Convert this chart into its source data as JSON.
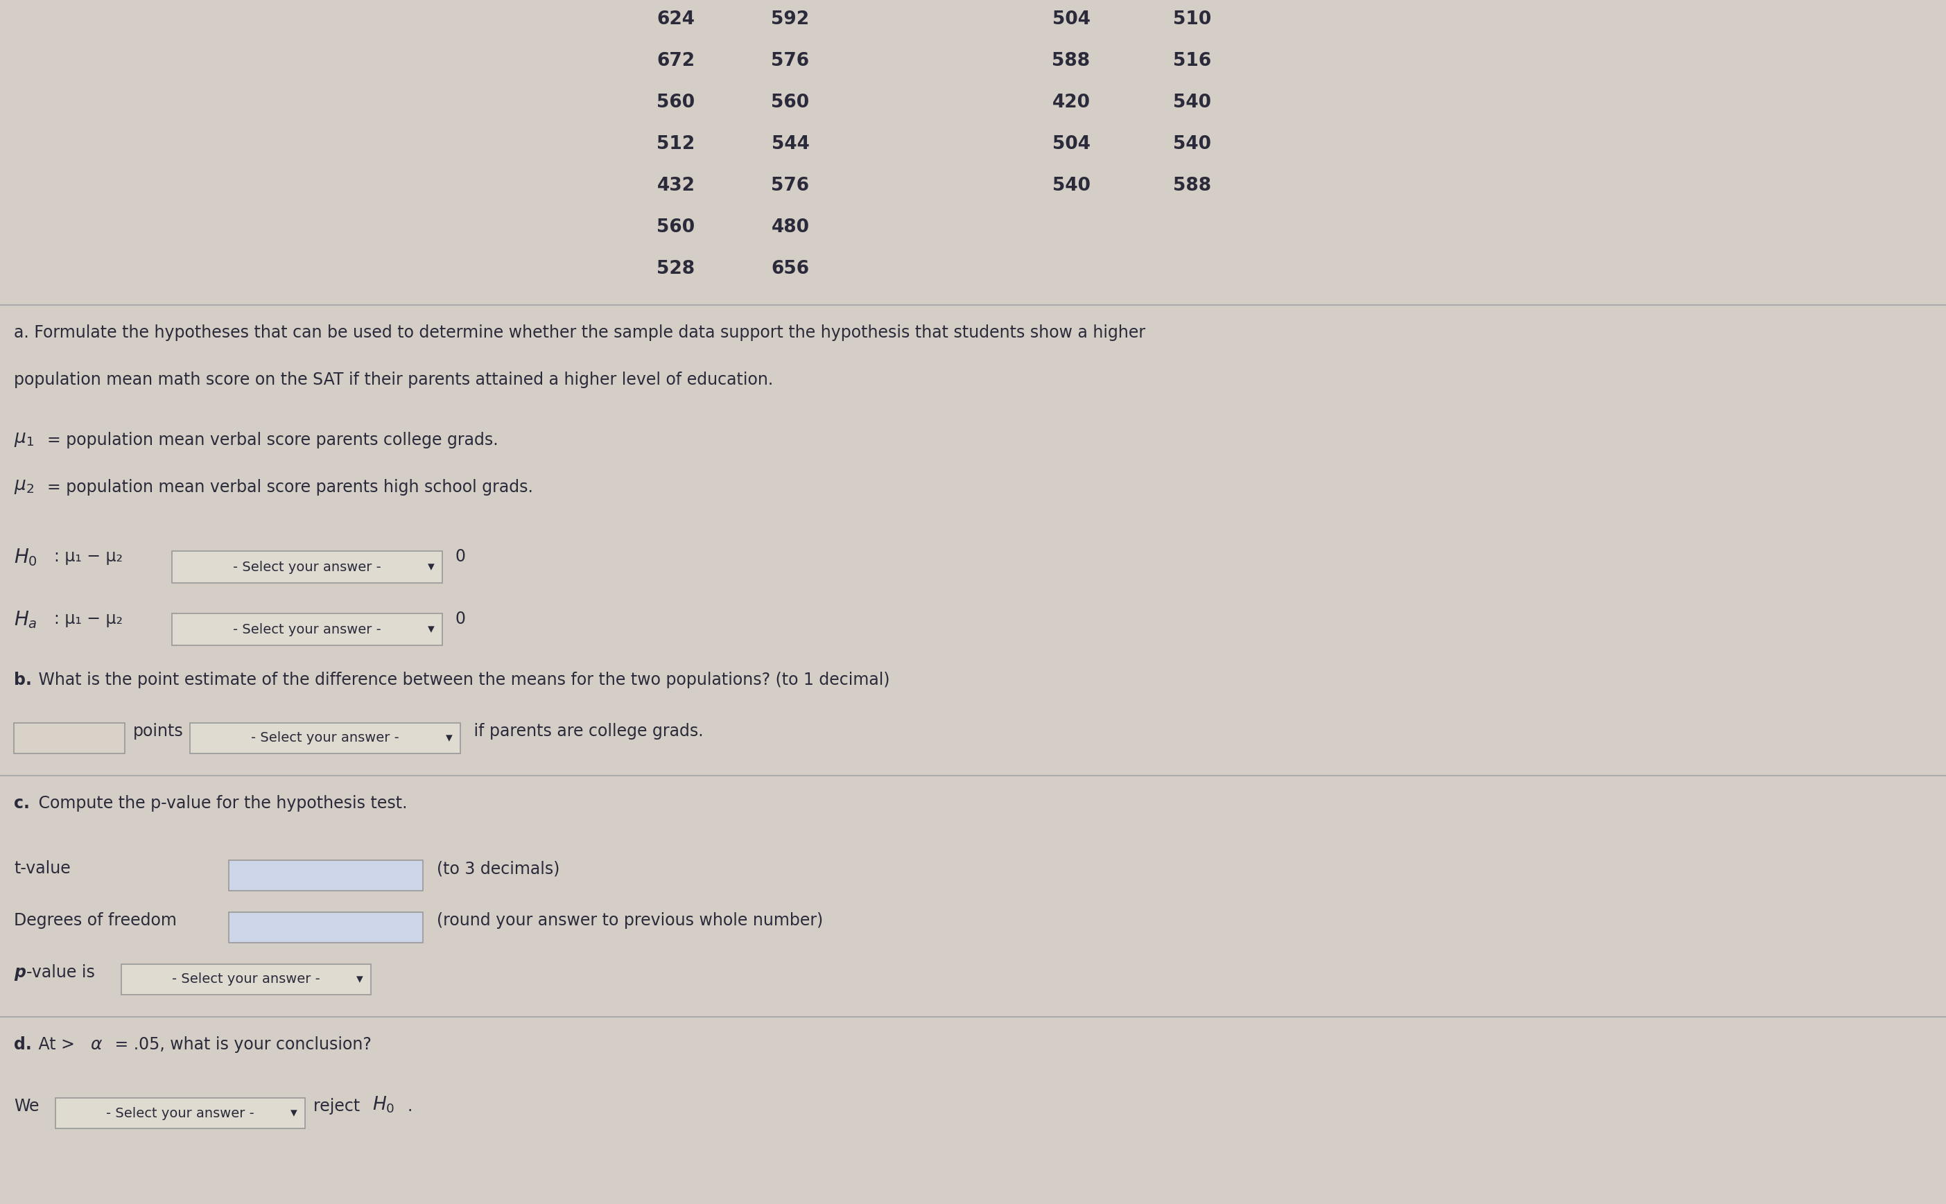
{
  "bg_color": "#d4cec6",
  "text_color": "#2a2a3a",
  "table_data_top": [
    [
      "624",
      "592",
      "504",
      "510"
    ],
    [
      "672",
      "576",
      "588",
      "516"
    ],
    [
      "560",
      "560",
      "420",
      "540"
    ],
    [
      "512",
      "544",
      "504",
      "540"
    ],
    [
      "432",
      "576",
      "540",
      "588"
    ],
    [
      "560",
      "480",
      "",
      ""
    ],
    [
      "528",
      "656",
      "",
      ""
    ]
  ],
  "section_a_line1": "a. Formulate the hypotheses that can be used to determine whether the sample data support the hypothesis that students show a higher",
  "section_a_line2": "population mean math score on the SAT if their parents attained a higher level of education.",
  "mu1_text": "= population mean verbal score parents college grads.",
  "mu2_text": "= population mean verbal score parents high school grads.",
  "select_text": "- Select your answer -",
  "section_b_bold": "b.",
  "section_b_text": " What is the point estimate of the difference between the means for the two populations? (to 1 decimal)",
  "if_parents_text": " if parents are college grads.",
  "section_c_bold": "c.",
  "section_c_text": " Compute the p-value for the hypothesis test.",
  "t_value_label": "t-value",
  "t_value_hint": "(to 3 decimals)",
  "dof_label": "Degrees of freedom",
  "dof_hint": "(round your answer to previous whole number)",
  "pvalue_label": "p",
  "pvalue_label2": "-value is",
  "section_d_bold": "d.",
  "section_d_text": " At >",
  "section_d_text2": " = .05, what is your conclusion?",
  "we_text": "We",
  "reject_text": " reject ",
  "font_size": 17,
  "font_size_box": 14,
  "box_facecolor": "#e0dbd1",
  "box_edgecolor": "#999999",
  "input_facecolor": "#ccd6e8",
  "sep_color": "#aaaaaa"
}
